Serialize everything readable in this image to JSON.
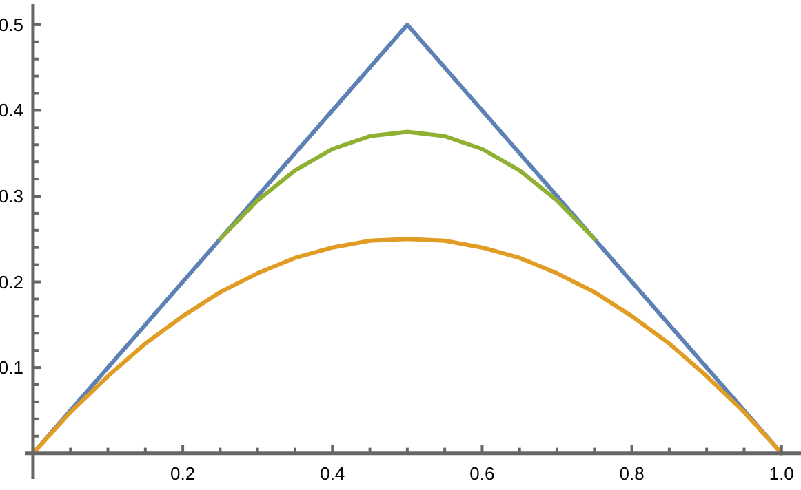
{
  "chart_data": {
    "type": "line",
    "xlim": [
      -0.011,
      1.026
    ],
    "ylim": [
      -0.03,
      0.524
    ],
    "xticks": [
      {
        "value": 0.05,
        "label": null
      },
      {
        "value": 0.1,
        "label": null
      },
      {
        "value": 0.15,
        "label": null
      },
      {
        "value": 0.2,
        "label": "0.2"
      },
      {
        "value": 0.25,
        "label": null
      },
      {
        "value": 0.3,
        "label": null
      },
      {
        "value": 0.35,
        "label": null
      },
      {
        "value": 0.4,
        "label": "0.4"
      },
      {
        "value": 0.45,
        "label": null
      },
      {
        "value": 0.5,
        "label": null
      },
      {
        "value": 0.55,
        "label": null
      },
      {
        "value": 0.6,
        "label": "0.6"
      },
      {
        "value": 0.65,
        "label": null
      },
      {
        "value": 0.7,
        "label": null
      },
      {
        "value": 0.75,
        "label": null
      },
      {
        "value": 0.8,
        "label": "0.8"
      },
      {
        "value": 0.85,
        "label": null
      },
      {
        "value": 0.9,
        "label": null
      },
      {
        "value": 0.95,
        "label": null
      },
      {
        "value": 1.0,
        "label": "1.0"
      }
    ],
    "yticks": [
      {
        "value": 0.02,
        "label": null
      },
      {
        "value": 0.04,
        "label": null
      },
      {
        "value": 0.06,
        "label": null
      },
      {
        "value": 0.08,
        "label": null
      },
      {
        "value": 0.1,
        "label": "0.1"
      },
      {
        "value": 0.12,
        "label": null
      },
      {
        "value": 0.14,
        "label": null
      },
      {
        "value": 0.16,
        "label": null
      },
      {
        "value": 0.18,
        "label": null
      },
      {
        "value": 0.2,
        "label": "0.2"
      },
      {
        "value": 0.22,
        "label": null
      },
      {
        "value": 0.24,
        "label": null
      },
      {
        "value": 0.26,
        "label": null
      },
      {
        "value": 0.28,
        "label": null
      },
      {
        "value": 0.3,
        "label": "0.3"
      },
      {
        "value": 0.32,
        "label": null
      },
      {
        "value": 0.34,
        "label": null
      },
      {
        "value": 0.36,
        "label": null
      },
      {
        "value": 0.38,
        "label": null
      },
      {
        "value": 0.4,
        "label": "0.4"
      },
      {
        "value": 0.42,
        "label": null
      },
      {
        "value": 0.44,
        "label": null
      },
      {
        "value": 0.46,
        "label": null
      },
      {
        "value": 0.48,
        "label": null
      },
      {
        "value": 0.5,
        "label": "0.5"
      }
    ],
    "series": [
      {
        "color": "#5e81b5",
        "x": [
          0,
          0.5,
          1
        ],
        "values": [
          0,
          0.5,
          0
        ]
      },
      {
        "color": "#e19c24",
        "x": [
          0,
          0.05,
          0.1,
          0.15,
          0.2,
          0.25,
          0.3,
          0.35,
          0.4,
          0.45,
          0.5,
          0.55,
          0.6,
          0.65,
          0.7,
          0.75,
          0.8,
          0.85,
          0.9,
          0.95,
          1
        ],
        "values": [
          0,
          0.048,
          0.09,
          0.128,
          0.16,
          0.188,
          0.21,
          0.228,
          0.24,
          0.248,
          0.25,
          0.248,
          0.24,
          0.228,
          0.21,
          0.188,
          0.16,
          0.128,
          0.09,
          0.048,
          0
        ]
      },
      {
        "color": "#8fb032",
        "x": [
          0.25,
          0.3,
          0.35,
          0.4,
          0.45,
          0.5,
          0.55,
          0.6,
          0.65,
          0.7,
          0.75
        ],
        "values": [
          0.25,
          0.295,
          0.33,
          0.355,
          0.37,
          0.375,
          0.37,
          0.355,
          0.33,
          0.295,
          0.25
        ]
      }
    ]
  }
}
